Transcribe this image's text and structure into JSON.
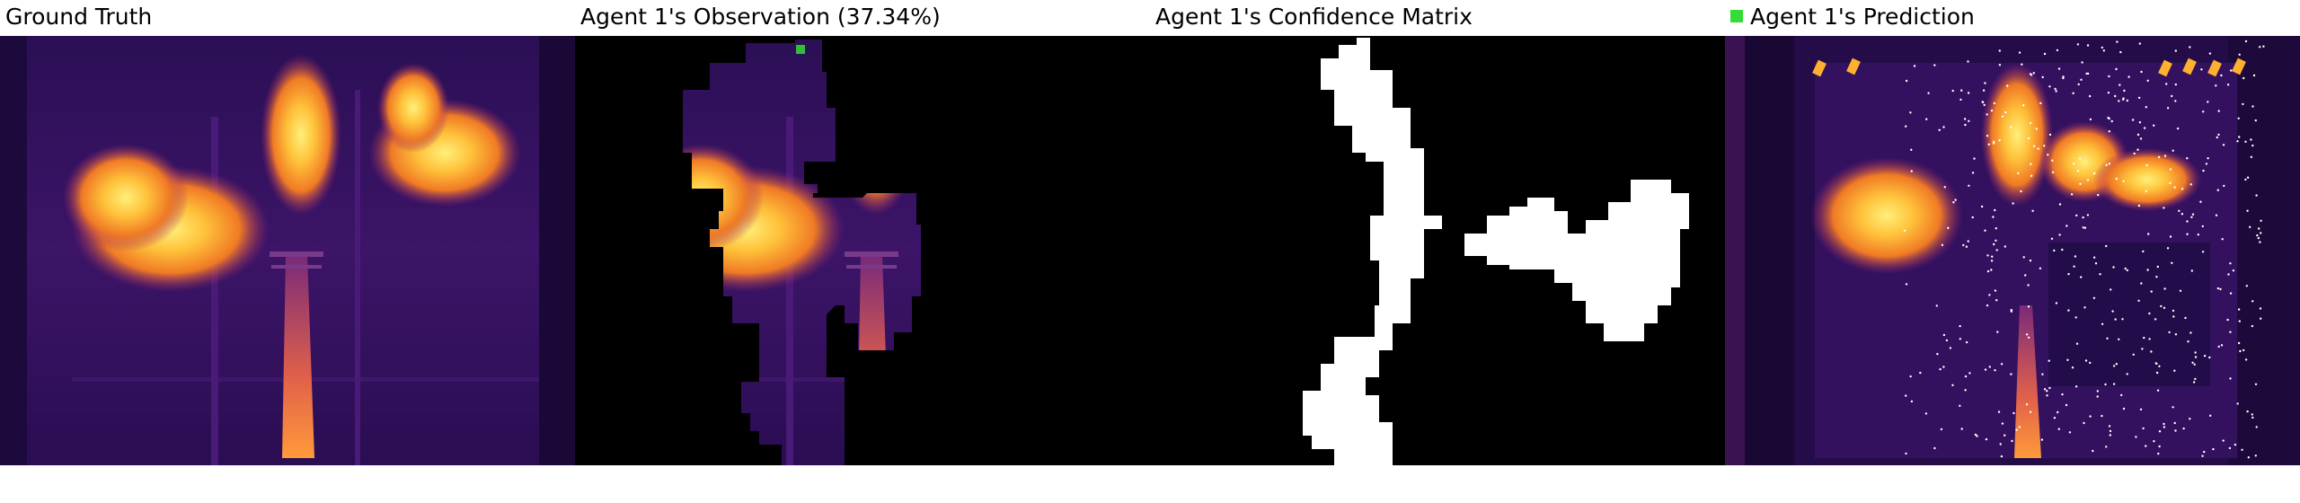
{
  "panels": [
    {
      "title": "Ground Truth"
    },
    {
      "title": "Agent 1's Observation (37.34%)"
    },
    {
      "title": "Agent 1's Confidence Matrix"
    },
    {
      "title": "Agent 1's Prediction"
    }
  ],
  "legend": {
    "color": "#33dd33"
  },
  "colors": {
    "background": "#ffffff",
    "scene_dark": "#1c0b3b",
    "scene_mid": "#3a1366",
    "hot_orange": "#ff8a1a",
    "hot_yellow": "#ffd23a",
    "mask_black": "#000000",
    "mask_white": "#ffffff",
    "prediction_dots": "#ffffff"
  }
}
